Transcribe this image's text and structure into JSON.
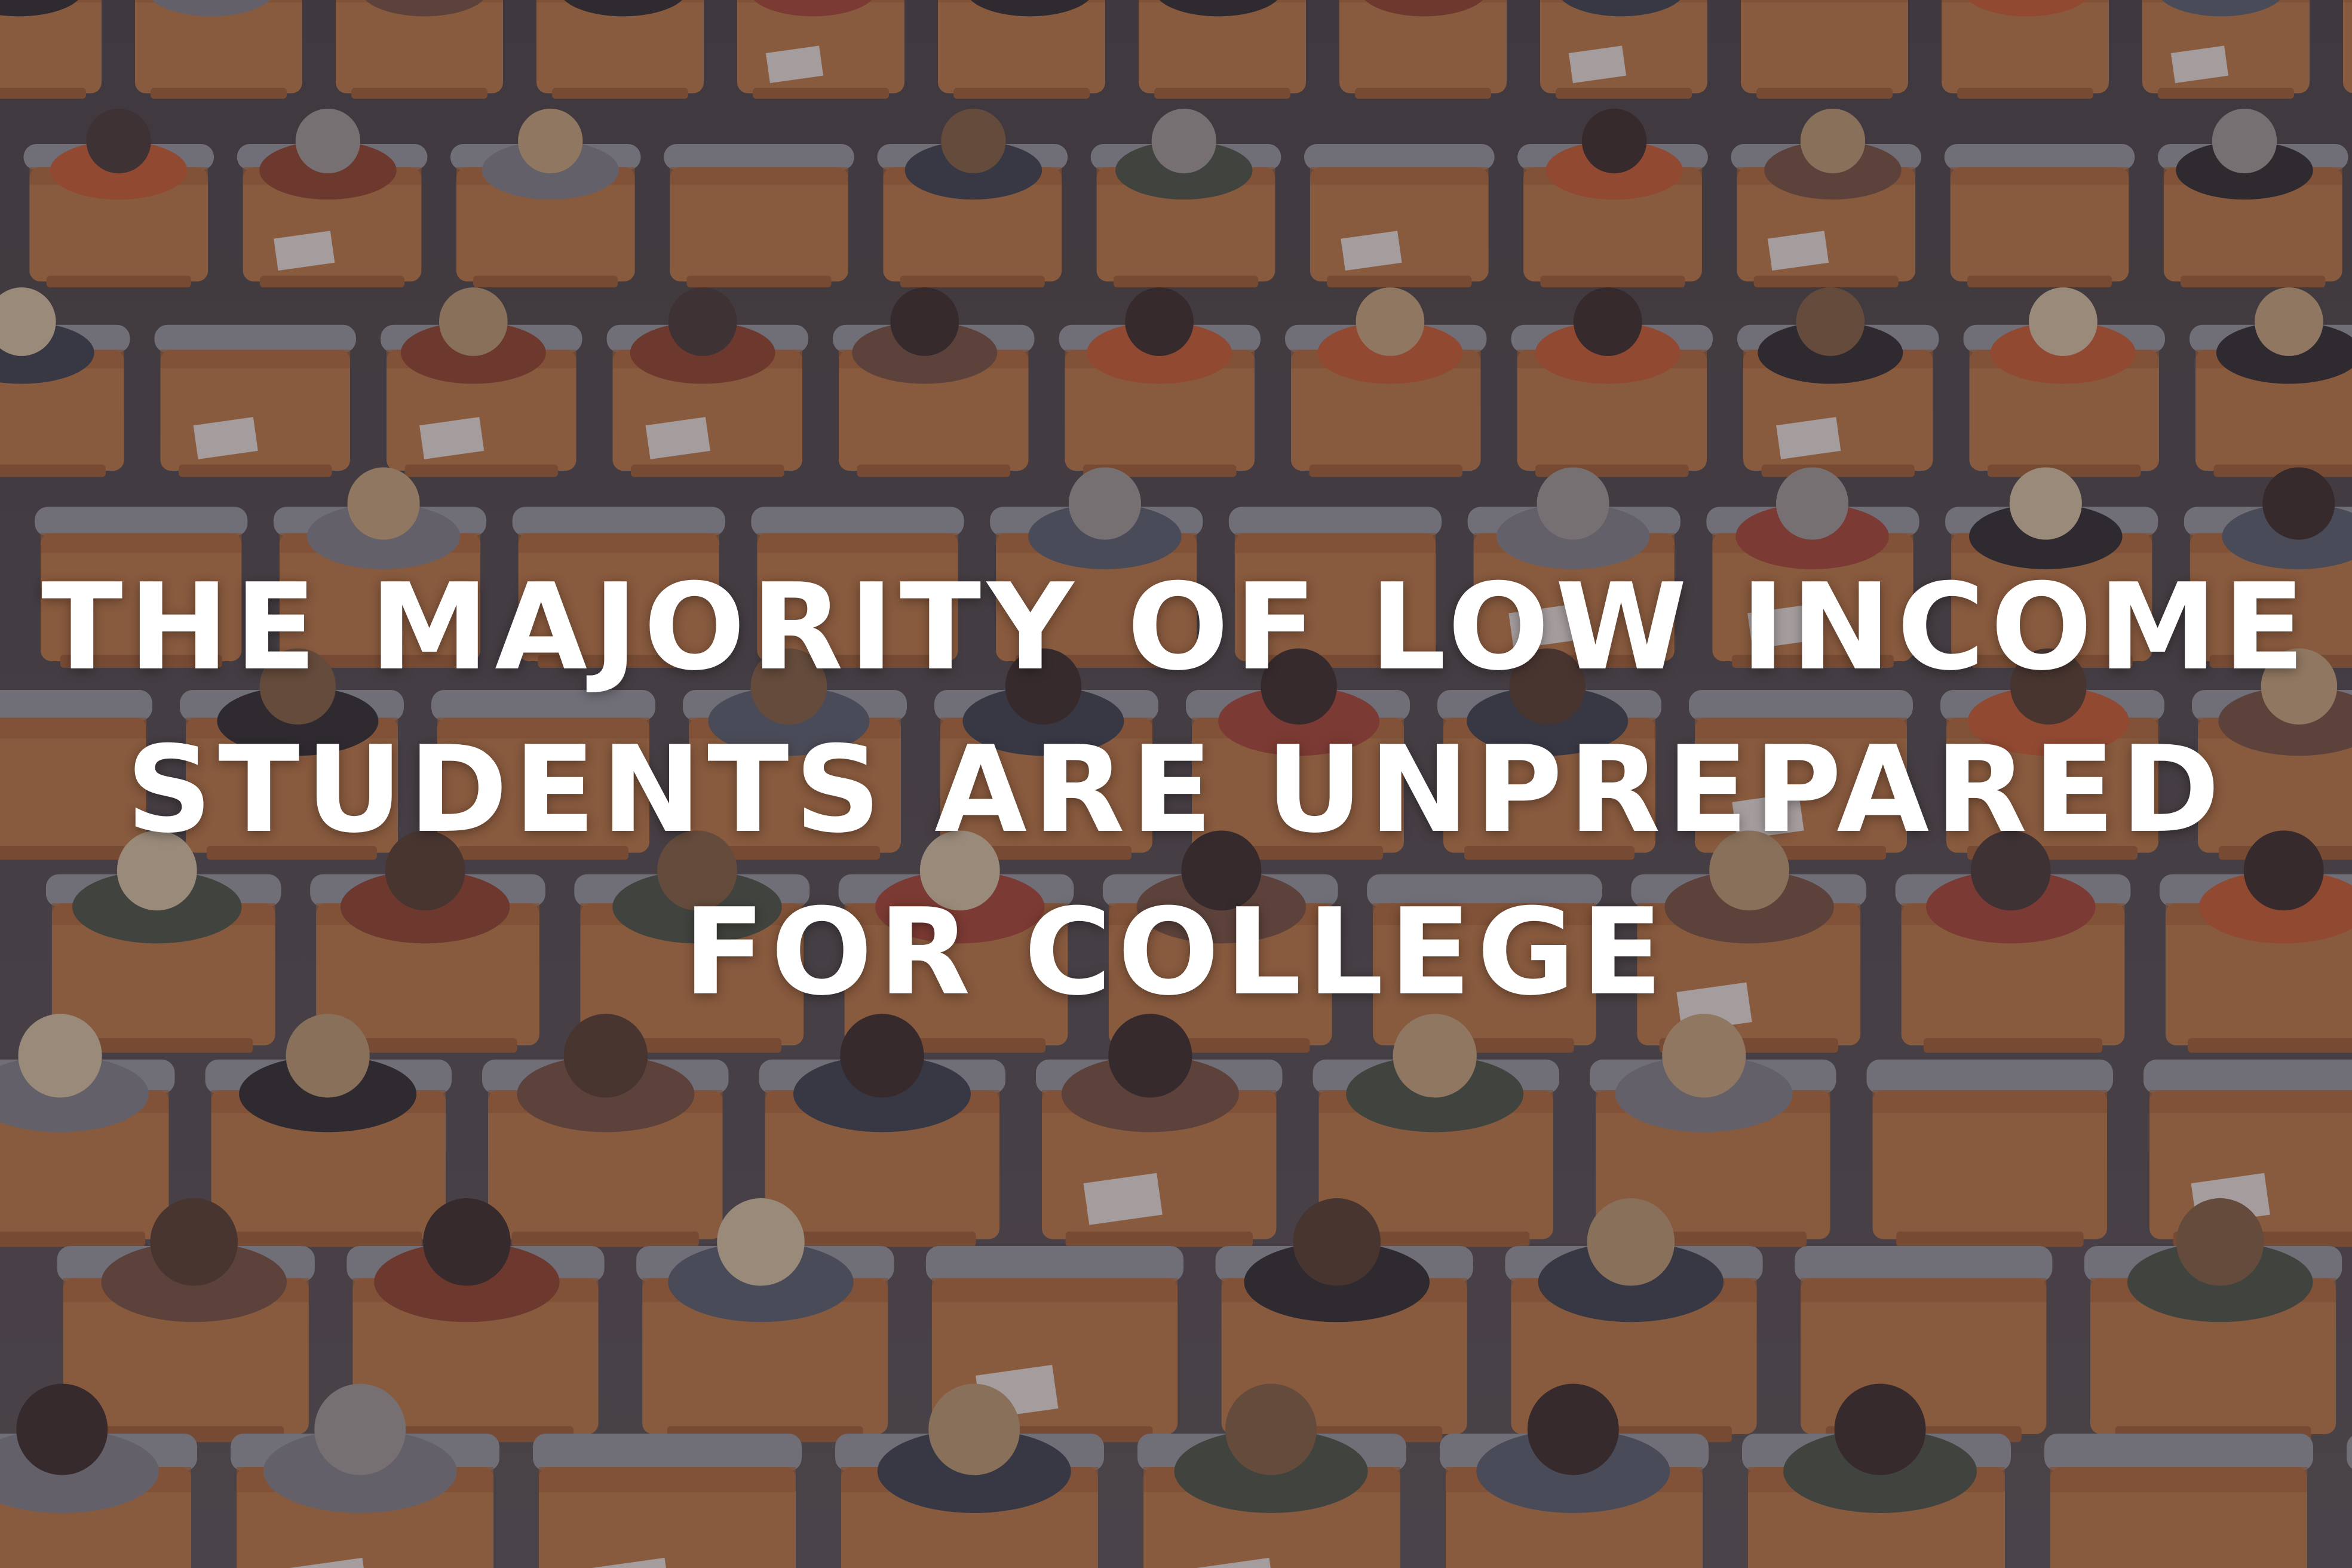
{
  "image": {
    "subject": "lecture-hall-audience",
    "palette": {
      "seat_wood": "#b9743f",
      "seat_upholstery": "#8f97a0",
      "floor": "#4a4a4e",
      "overlay": "#46373e",
      "text": "#ffffff"
    }
  },
  "headline": {
    "line_1": "THE MAJORITY OF LOW INCOME",
    "line_2": "STUDENTS ARE UNPREPARED",
    "line_3": "FOR COLLEGE"
  }
}
